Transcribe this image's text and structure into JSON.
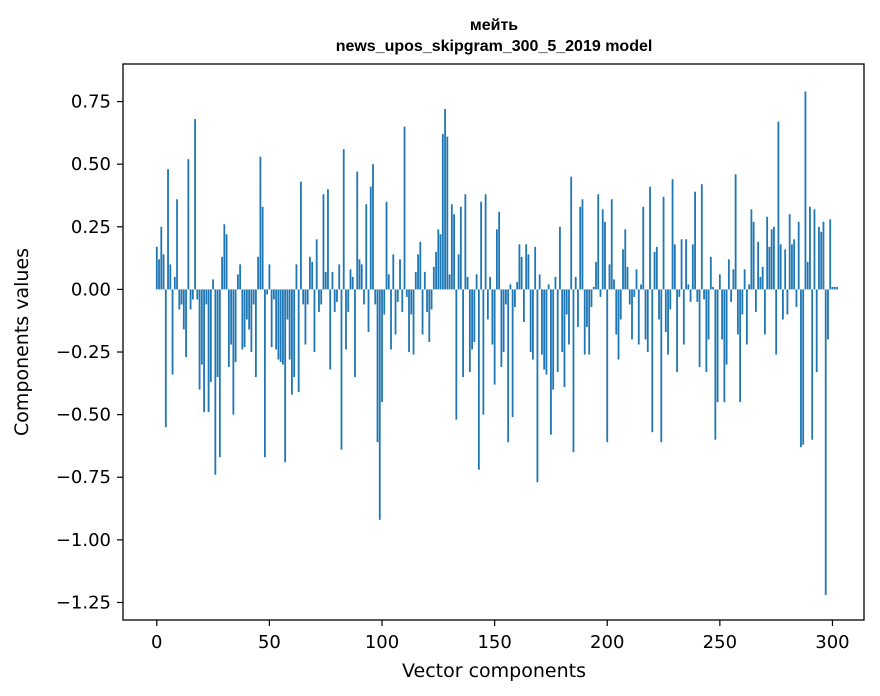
{
  "chart_data": {
    "type": "bar",
    "title": "мейть",
    "subtitle": "news_upos_skipgram_300_5_2019 model",
    "xlabel": "Vector components",
    "ylabel": "Components values",
    "xlim": [
      -15,
      314
    ],
    "ylim": [
      -1.32,
      0.9
    ],
    "xticks": [
      0,
      50,
      100,
      150,
      200,
      250,
      300
    ],
    "yticks": [
      0.75,
      0.5,
      0.25,
      0.0,
      -0.25,
      -0.5,
      -0.75,
      -1.0,
      -1.25
    ],
    "ytick_labels": [
      "0.75",
      "0.50",
      "0.25",
      "0.00",
      "−0.25",
      "−0.50",
      "−0.75",
      "−1.00",
      "−1.25"
    ],
    "xtick_labels": [
      "0",
      "50",
      "100",
      "150",
      "200",
      "250",
      "300"
    ],
    "grid": false,
    "bar_color": "#1f77b4",
    "values": [
      0.17,
      0.12,
      0.25,
      0.14,
      -0.55,
      0.48,
      0.1,
      -0.34,
      0.05,
      0.36,
      -0.08,
      -0.06,
      -0.16,
      -0.27,
      0.52,
      -0.08,
      -0.04,
      0.68,
      -0.04,
      -0.4,
      -0.3,
      -0.49,
      -0.06,
      -0.49,
      -0.37,
      0.04,
      -0.74,
      -0.35,
      -0.67,
      0.13,
      0.26,
      0.22,
      -0.31,
      -0.22,
      -0.5,
      -0.29,
      0.06,
      0.1,
      -0.24,
      -0.23,
      -0.12,
      -0.16,
      -0.25,
      -0.06,
      -0.35,
      0.13,
      0.53,
      0.33,
      -0.67,
      -0.02,
      0.1,
      -0.23,
      -0.04,
      -0.24,
      -0.28,
      -0.29,
      -0.3,
      -0.69,
      -0.12,
      -0.28,
      -0.42,
      -0.35,
      0.1,
      -0.41,
      0.43,
      -0.06,
      -0.22,
      -0.06,
      0.13,
      0.11,
      -0.25,
      0.2,
      -0.09,
      -0.06,
      0.38,
      0.07,
      0.4,
      -0.32,
      0.07,
      -0.09,
      -0.05,
      0.1,
      -0.64,
      0.56,
      -0.24,
      -0.09,
      0.08,
      0.05,
      -0.35,
      0.47,
      0.12,
      0.1,
      -0.06,
      0.34,
      -0.17,
      0.41,
      0.5,
      -0.06,
      -0.61,
      -0.92,
      -0.45,
      -0.1,
      0.35,
      0.06,
      -0.24,
      0.14,
      -0.18,
      -0.05,
      0.12,
      -0.09,
      0.65,
      -0.03,
      -0.25,
      -0.1,
      -0.26,
      0.07,
      0.14,
      0.19,
      -0.18,
      0.07,
      -0.09,
      -0.21,
      -0.08,
      0.09,
      0.15,
      0.24,
      0.22,
      0.62,
      0.72,
      0.61,
      0.06,
      0.34,
      0.3,
      -0.52,
      0.14,
      0.33,
      -0.35,
      0.38,
      0.05,
      -0.33,
      -0.24,
      -0.21,
      0.06,
      -0.72,
      0.35,
      -0.5,
      0.38,
      -0.12,
      0.05,
      -0.22,
      -0.38,
      0.24,
      0.31,
      -0.31,
      -0.25,
      -0.06,
      -0.61,
      0.02,
      -0.51,
      -0.07,
      0.03,
      0.18,
      0.13,
      -0.13,
      0.18,
      0.14,
      -0.25,
      -0.28,
      0.17,
      -0.77,
      0.06,
      -0.26,
      -0.32,
      -0.34,
      0.02,
      -0.58,
      -0.4,
      0.05,
      -0.33,
      0.25,
      -0.25,
      -0.39,
      -0.1,
      -0.22,
      0.45,
      -0.65,
      0.05,
      -0.15,
      0.33,
      0.36,
      -0.26,
      -0.15,
      -0.26,
      -0.07,
      0.01,
      0.11,
      0.38,
      -0.03,
      0.32,
      0.27,
      -0.61,
      0.1,
      0.36,
      0.04,
      -0.18,
      -0.28,
      -0.12,
      0.16,
      0.24,
      0.09,
      -0.06,
      -0.2,
      -0.03,
      0.08,
      -0.22,
      0.02,
      0.33,
      -0.2,
      -0.25,
      0.41,
      -0.57,
      0.15,
      0.17,
      -0.12,
      -0.61,
      0.37,
      -0.17,
      -0.26,
      -0.08,
      0.44,
      0.18,
      -0.33,
      -0.03,
      0.2,
      -0.22,
      0.2,
      0.02,
      -0.05,
      0.18,
      0.39,
      -0.05,
      -0.31,
      0.42,
      -0.04,
      -0.33,
      -0.2,
      0.13,
      0.01,
      -0.6,
      -0.45,
      0.06,
      -0.2,
      -0.45,
      -0.3,
      0.12,
      -0.05,
      0.08,
      0.46,
      -0.18,
      -0.45,
      -0.1,
      0.08,
      -0.22,
      0.02,
      0.32,
      0.27,
      -0.09,
      0.19,
      0.05,
      0.09,
      -0.18,
      0.29,
      0.17,
      0.24,
      0.25,
      -0.26,
      0.67,
      0.18,
      -0.12,
      0.16,
      -0.1,
      0.3,
      0.18,
      0.2,
      -0.07,
      0.27,
      -0.63,
      -0.62,
      0.79,
      0.11,
      0.33,
      -0.6,
      0.32,
      -0.33,
      0.25,
      0.23,
      0.27,
      -1.22,
      -0.2,
      0.28,
      0.01,
      0.01,
      0.01
    ]
  }
}
